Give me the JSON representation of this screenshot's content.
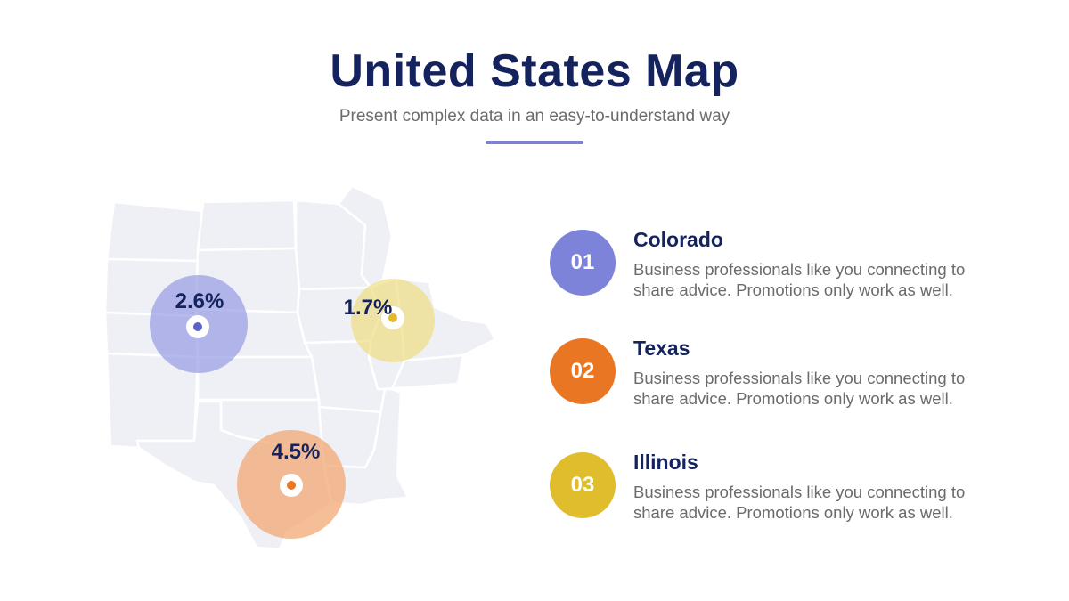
{
  "header": {
    "title": "United States Map",
    "subtitle": "Present complex data in an easy-to-understand way",
    "divider_color": "#7d83d2"
  },
  "map": {
    "region": "Central United States",
    "land_color": "#eef0f5",
    "border_color": "#ffffff",
    "markers": [
      {
        "state": "Colorado",
        "value_label": "2.6%",
        "color": "#8f94e0",
        "dot_color": "#5b62c8"
      },
      {
        "state": "Illinois",
        "value_label": "1.7%",
        "color": "#eedc7a",
        "dot_color": "#e2b92e"
      },
      {
        "state": "Texas",
        "value_label": "4.5%",
        "color": "#f2a873",
        "dot_color": "#e87623"
      }
    ]
  },
  "list": [
    {
      "number": "01",
      "title": "Colorado",
      "description": "Business professionals like you connecting to share advice. Promotions only work as well.",
      "color": "#7d83d9"
    },
    {
      "number": "02",
      "title": "Texas",
      "description": "Business professionals like you connecting to share advice. Promotions only work as well.",
      "color": "#e87623"
    },
    {
      "number": "03",
      "title": "Illinois",
      "description": "Business professionals like you connecting to share advice. Promotions only work as well.",
      "color": "#e0bd2d"
    }
  ]
}
